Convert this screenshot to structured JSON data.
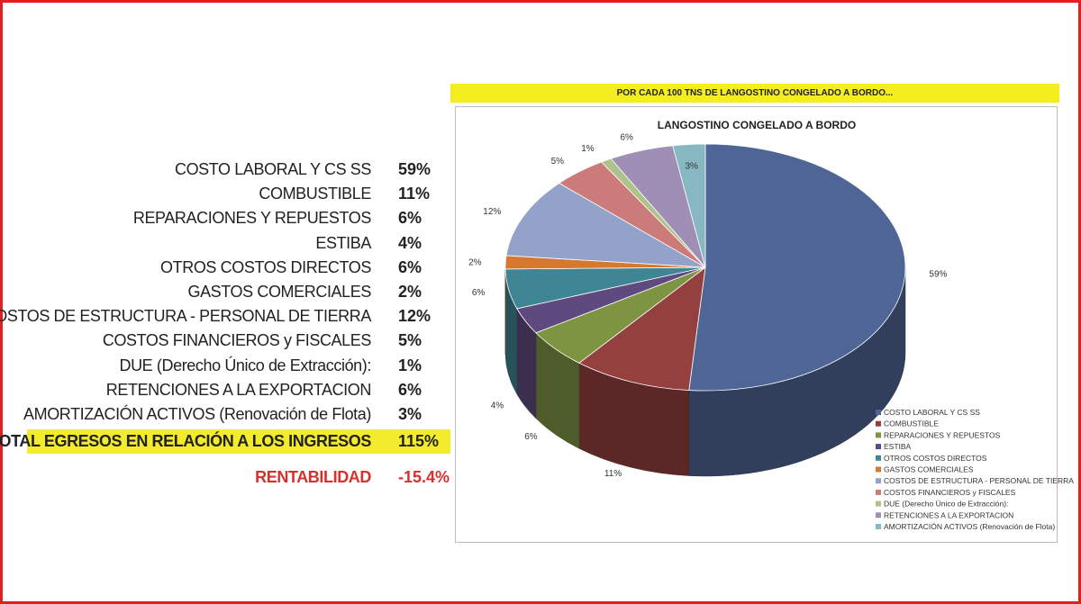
{
  "table": {
    "rows": [
      {
        "label": "COSTO LABORAL Y CS SS",
        "value": "59%"
      },
      {
        "label": "COMBUSTIBLE",
        "value": "11%"
      },
      {
        "label": "REPARACIONES Y REPUESTOS",
        "value": "6%"
      },
      {
        "label": "ESTIBA",
        "value": "4%"
      },
      {
        "label": "OTROS COSTOS DIRECTOS",
        "value": "6%"
      },
      {
        "label": "GASTOS COMERCIALES",
        "value": "2%"
      },
      {
        "label": "COSTOS DE ESTRUCTURA - PERSONAL DE TIERRA",
        "value": "12%"
      },
      {
        "label": "COSTOS FINANCIEROS y FISCALES",
        "value": "5%"
      },
      {
        "label": "DUE (Derecho Único de Extracción):",
        "value": "1%"
      },
      {
        "label": "RETENCIONES A LA EXPORTACION",
        "value": "6%"
      },
      {
        "label": "AMORTIZACIÓN ACTIVOS (Renovación de Flota)",
        "value": "3%"
      }
    ],
    "total_label": "TOTAL EGRESOS EN RELACIÓN A LOS INGRESOS",
    "total_value": "115%",
    "rent_label": "RENTABILIDAD",
    "rent_value": "-15.4%"
  },
  "banner": "POR CADA 100 TNS DE LANGOSTINO CONGELADO A BORDO...",
  "chart_data": {
    "type": "pie",
    "title": "LANGOSTINO CONGELADO A BORDO",
    "categories": [
      "COSTO LABORAL Y CS SS",
      "COMBUSTIBLE",
      "REPARACIONES Y REPUESTOS",
      "ESTIBA",
      "OTROS COSTOS DIRECTOS",
      "GASTOS COMERCIALES",
      "COSTOS DE ESTRUCTURA - PERSONAL DE TIERRA",
      "COSTOS FINANCIEROS y FISCALES",
      "DUE (Derecho Único de Extracción):",
      "RETENCIONES A LA EXPORTACION",
      "AMORTIZACIÓN ACTIVOS (Renovación de Flota)"
    ],
    "values": [
      59,
      11,
      6,
      4,
      6,
      2,
      12,
      5,
      1,
      6,
      3
    ],
    "data_labels": [
      "59%",
      "11%",
      "6%",
      "4%",
      "6%",
      "2%",
      "12%",
      "5%",
      "1%",
      "6%",
      "3%"
    ],
    "colors": [
      "#4f6596",
      "#93403f",
      "#7d9542",
      "#5f4a80",
      "#3f8593",
      "#d7782f",
      "#92a2c9",
      "#cb7b79",
      "#aec38a",
      "#9f8fb6",
      "#87b8c2"
    ],
    "legend_position": "bottom-right",
    "style": "3d"
  }
}
